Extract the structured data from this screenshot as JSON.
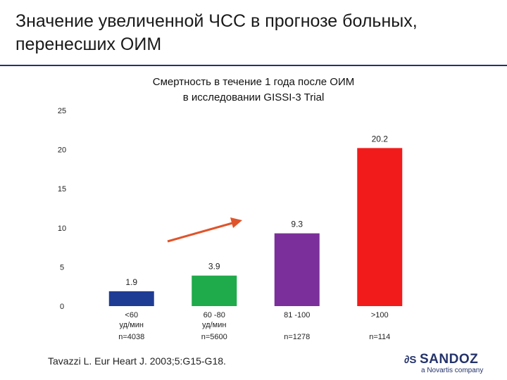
{
  "slide": {
    "title_line1": "Значение увеличенной ЧСС в прогнозе  больных,",
    "title_line2": "перенесших  ОИМ",
    "rule_color": "#24336b"
  },
  "chart_data": {
    "type": "bar",
    "title_line1": "Смертность в течение 1 года  после  ОИМ",
    "title_line2": "в исследовании GISSI-3 Trial",
    "ylim": [
      0,
      25
    ],
    "yticks": [
      0,
      5,
      10,
      15,
      20,
      25
    ],
    "grid": false,
    "categories": [
      {
        "label_line1": "<60",
        "label_line2": "уд/мин",
        "n_label": "n=4038"
      },
      {
        "label_line1": "60 -80",
        "label_line2": "уд/мин",
        "n_label": "n=5600"
      },
      {
        "label_line1": "81 -100",
        "label_line2": "",
        "n_label": "n=1278"
      },
      {
        "label_line1": ">100",
        "label_line2": "",
        "n_label": "n=114"
      }
    ],
    "values": [
      1.9,
      3.9,
      9.3,
      20.2
    ],
    "value_labels": [
      "1.9",
      "3.9",
      "9.3",
      "20.2"
    ],
    "colors": [
      "#1f3c94",
      "#1faa4b",
      "#7a2f9a",
      "#f21b1b"
    ],
    "annotation_arrow_color": "#e0542a"
  },
  "footer": {
    "citation": "Tavazzi L. Eur Heart J. 2003;5:G15-G18.",
    "logo_mark": "∂S",
    "logo_text": "SANDOZ",
    "logo_sub": "a Novartis company"
  }
}
